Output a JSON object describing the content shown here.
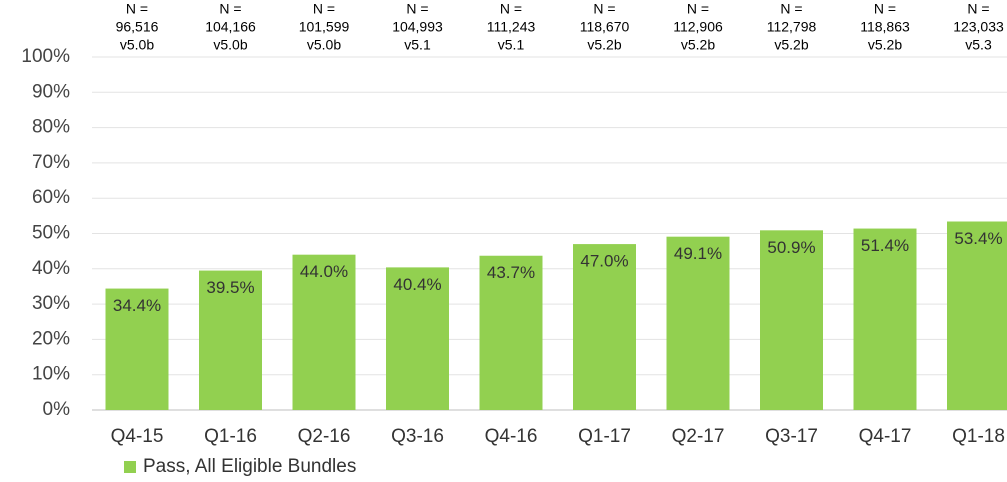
{
  "chart_data": {
    "type": "bar",
    "categories": [
      "Q4-15",
      "Q1-16",
      "Q2-16",
      "Q3-16",
      "Q4-16",
      "Q1-17",
      "Q2-17",
      "Q3-17",
      "Q4-17",
      "Q1-18"
    ],
    "series": [
      {
        "name": "Pass, All Eligible Bundles",
        "color": "#92d050",
        "values": [
          34.4,
          39.5,
          44.0,
          40.4,
          43.7,
          47.0,
          49.1,
          50.9,
          51.4,
          53.4
        ],
        "value_labels": [
          "34.4%",
          "39.5%",
          "44.0%",
          "40.4%",
          "43.7%",
          "47.0%",
          "49.1%",
          "50.9%",
          "51.4%",
          "53.4%"
        ]
      }
    ],
    "annotations": {
      "n_prefix": "N =",
      "counts": [
        "96,516",
        "104,166",
        "101,599",
        "104,993",
        "111,243",
        "118,670",
        "112,906",
        "112,798",
        "118,863",
        "123,033"
      ],
      "versions": [
        "v5.0b",
        "v5.0b",
        "v5.0b",
        "v5.1",
        "v5.1",
        "v5.2b",
        "v5.2b",
        "v5.2b",
        "v5.2b",
        "v5.3"
      ]
    },
    "ylim": [
      0,
      100
    ],
    "yticks": [
      {
        "value": 0,
        "label": "0%"
      },
      {
        "value": 10,
        "label": "10%"
      },
      {
        "value": 20,
        "label": "20%"
      },
      {
        "value": 30,
        "label": "30%"
      },
      {
        "value": 40,
        "label": "40%"
      },
      {
        "value": 50,
        "label": "50%"
      },
      {
        "value": 60,
        "label": "60%"
      },
      {
        "value": 70,
        "label": "70%"
      },
      {
        "value": 80,
        "label": "80%"
      },
      {
        "value": 90,
        "label": "90%"
      },
      {
        "value": 100,
        "label": "100%"
      }
    ],
    "grid": true,
    "legend": "bottom-left"
  }
}
